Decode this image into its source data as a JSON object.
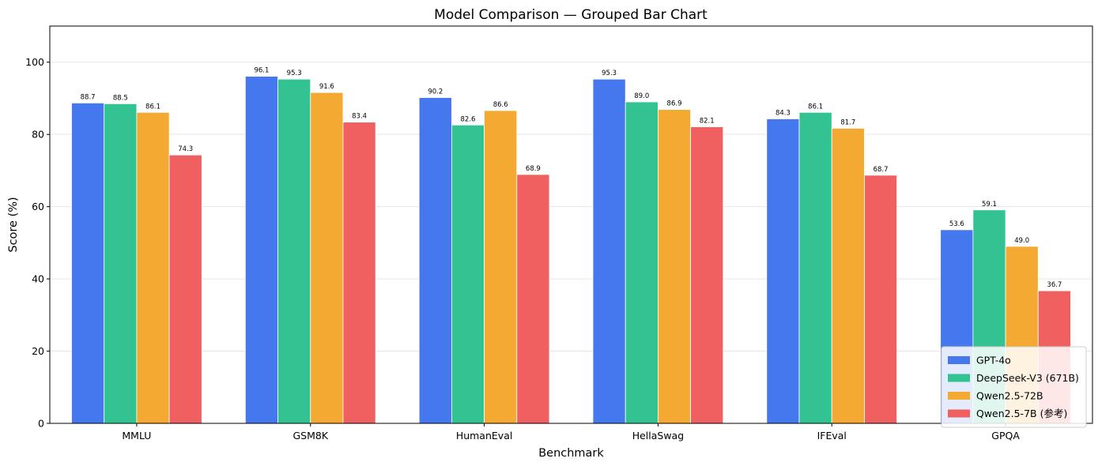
{
  "chart_data": {
    "type": "bar",
    "title": "Model Comparison — Grouped Bar Chart",
    "xlabel": "Benchmark",
    "ylabel": "Score (%)",
    "ylim": [
      0,
      110
    ],
    "yticks": [
      0,
      20,
      40,
      60,
      80,
      100
    ],
    "grid": "horizontal",
    "legend_position": "bottom-right",
    "categories": [
      "MMLU",
      "GSM8K",
      "HumanEval",
      "HellaSwag",
      "IFEval",
      "GPQA"
    ],
    "series": [
      {
        "name": "GPT-4o",
        "color": "#4577ee",
        "values": [
          88.7,
          96.1,
          90.2,
          95.3,
          84.3,
          53.6
        ]
      },
      {
        "name": "DeepSeek-V3 (671B)",
        "color": "#33c392",
        "values": [
          88.5,
          95.3,
          82.6,
          89.0,
          86.1,
          59.1
        ]
      },
      {
        "name": "Qwen2.5-72B",
        "color": "#f4a932",
        "values": [
          86.1,
          91.6,
          86.6,
          86.9,
          81.7,
          49.0
        ]
      },
      {
        "name": "Qwen2.5-7B (参考)",
        "color": "#f06060",
        "values": [
          74.3,
          83.4,
          68.9,
          82.1,
          68.7,
          36.7
        ]
      }
    ]
  }
}
